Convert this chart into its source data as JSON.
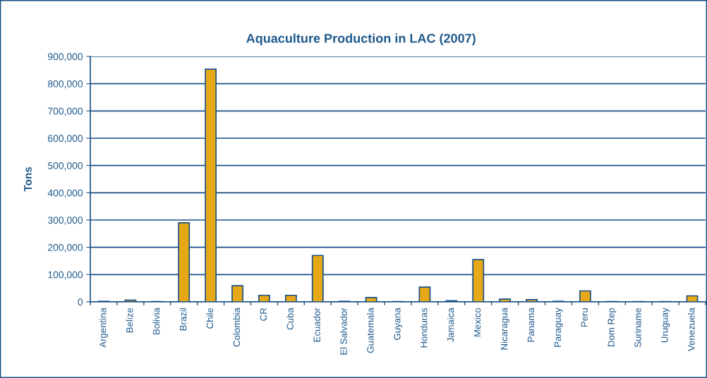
{
  "chart_data": {
    "type": "bar",
    "title": "Aquaculture Production in LAC (2007)",
    "ylabel": "Tons",
    "categories": [
      "Argentina",
      "Belize",
      "Bolivia",
      "Brazil",
      "Chile",
      "Colombia",
      "CR",
      "Cuba",
      "Ecuador",
      "El Salvador",
      "Guatemala",
      "Guyana",
      "Honduras",
      "Jamaica",
      "Mexico",
      "Nicaragua",
      "Panama",
      "Paraguay",
      "Peru",
      "Dom Rep",
      "Suriname",
      "Uruguay",
      "Venezuela"
    ],
    "values": [
      2000,
      6000,
      1000,
      290000,
      853000,
      59000,
      24000,
      24000,
      170000,
      2000,
      16000,
      1000,
      54000,
      4000,
      155000,
      10000,
      8000,
      2000,
      40000,
      1000,
      1000,
      1000,
      22000
    ],
    "color": "#e6a817",
    "ylim": [
      0,
      900000
    ],
    "yticks": [
      {
        "value": 0,
        "label": "0"
      },
      {
        "value": 100000,
        "label": "100,000"
      },
      {
        "value": 200000,
        "label": "200,000"
      },
      {
        "value": 300000,
        "label": "300,000"
      },
      {
        "value": 400000,
        "label": "400,000"
      },
      {
        "value": 500000,
        "label": "500,000"
      },
      {
        "value": 600000,
        "label": "600,000"
      },
      {
        "value": 700000,
        "label": "700,000"
      },
      {
        "value": 800000,
        "label": "800,000"
      },
      {
        "value": 900000,
        "label": "900,000"
      }
    ],
    "grid": "y",
    "legend": false
  }
}
